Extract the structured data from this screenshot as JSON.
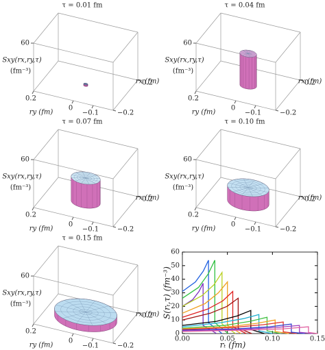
{
  "chart_data": [
    {
      "type": "surface3d",
      "title": "τ = 0.01 fm",
      "zlabel": "Sxy(rx,ry,τ)",
      "zunit": "(fm⁻³)",
      "xlabel": "rx (fm)",
      "ylabel": "ry (fm)",
      "xlim": [
        -0.2,
        0.2
      ],
      "ylim": [
        -0.2,
        0.2
      ],
      "zlim": [
        0,
        60
      ],
      "xticks": [
        {
          "value": -0.2,
          "label": "−0.2"
        },
        0.2
      ],
      "yticks": [
        {
          "value": -0.1,
          "label": "−0.1"
        },
        0,
        0.2
      ],
      "zticks": [
        60
      ],
      "radius": 0.01,
      "height": 2,
      "color": "#c060a8",
      "top_color": "#4a2a6a"
    },
    {
      "type": "surface3d",
      "title": "τ = 0.04 fm",
      "zlabel": "Sxy(rx,ry,τ)",
      "zunit": "(fm⁻³)",
      "xlabel": "rx (fm)",
      "ylabel": "ry (fm)",
      "xlim": [
        -0.2,
        0.2
      ],
      "ylim": [
        -0.2,
        0.2
      ],
      "zlim": [
        0,
        60
      ],
      "xticks": [
        {
          "value": -0.2,
          "label": "−0.2"
        },
        0.2
      ],
      "yticks": [
        {
          "value": -0.1,
          "label": "−0.1"
        },
        0,
        0.2
      ],
      "zticks": [
        60
      ],
      "radius": 0.04,
      "height": 40,
      "color": "#d070b8",
      "top_color": "#eaa8dc"
    },
    {
      "type": "surface3d",
      "title": "τ = 0.07 fm",
      "zlabel": "Sxy(rx,ry,τ)",
      "zunit": "(fm⁻³)",
      "xlabel": "rx (fm)",
      "ylabel": "ry (fm)",
      "xlim": [
        -0.2,
        0.2
      ],
      "ylim": [
        -0.2,
        0.2
      ],
      "zlim": [
        0,
        60
      ],
      "xticks": [
        {
          "value": -0.2,
          "label": "−0.2"
        },
        0.2
      ],
      "yticks": [
        {
          "value": -0.1,
          "label": "−0.1"
        },
        0,
        0.2
      ],
      "zticks": [
        60
      ],
      "radius": 0.07,
      "height": 30,
      "color": "#d070b8",
      "top_color": "#cfe6f4"
    },
    {
      "type": "surface3d",
      "title": "τ = 0.10 fm",
      "zlabel": "Sxy(rx,ry,τ)",
      "zunit": "(fm⁻³)",
      "xlabel": "rx (fm)",
      "ylabel": "ry (fm)",
      "xlim": [
        -0.2,
        0.2
      ],
      "ylim": [
        -0.2,
        0.2
      ],
      "zlim": [
        0,
        60
      ],
      "xticks": [
        {
          "value": -0.2,
          "label": "−0.2"
        },
        0.2
      ],
      "yticks": [
        {
          "value": -0.1,
          "label": "−0.1"
        },
        0,
        0.2
      ],
      "zticks": [
        60
      ],
      "radius": 0.1,
      "height": 18,
      "color": "#d070b8",
      "top_color": "#c4e0f2"
    },
    {
      "type": "surface3d",
      "title": "τ = 0.15 fm",
      "zlabel": "Sxy(rx,ry,τ)",
      "zunit": "(fm⁻³)",
      "xlabel": "rx (fm)",
      "ylabel": "ry (fm)",
      "xlim": [
        -0.2,
        0.2
      ],
      "ylim": [
        -0.2,
        0.2
      ],
      "zlim": [
        0,
        60
      ],
      "xticks": [
        {
          "value": -0.2,
          "label": "−0.2"
        },
        0.2
      ],
      "yticks": [
        {
          "value": -0.1,
          "label": "−0.1"
        },
        0,
        0.2
      ],
      "zticks": [
        60
      ],
      "radius": 0.15,
      "height": 8,
      "color": "#d070b8",
      "top_color": "#bcdcf0"
    },
    {
      "type": "line",
      "xlabel": "rₜ (fm)",
      "ylabel": "S(rₜ,τ) (fm⁻³)",
      "xlim": [
        0,
        0.15
      ],
      "ylim": [
        0,
        60
      ],
      "xticks": [
        {
          "value": 0,
          "label": "0.00"
        },
        0.05,
        {
          "value": 0.1,
          "label": "0.10"
        },
        0.15
      ],
      "yticks": [
        0,
        10,
        20,
        30,
        40,
        50,
        60
      ],
      "series": [
        {
          "color": "#7b2fbe",
          "x": [
            0,
            0.0115,
            0.0184,
            0.023,
            0.023,
            0.038
          ],
          "values": [
            20,
            25,
            31,
            37,
            6,
            0
          ]
        },
        {
          "color": "#2060e0",
          "x": [
            0,
            0.0145,
            0.0232,
            0.029,
            0.029,
            0.044
          ],
          "values": [
            31,
            38,
            46,
            54,
            8,
            0
          ]
        },
        {
          "color": "#30c040",
          "x": [
            0,
            0.018,
            0.0288,
            0.036,
            0.036,
            0.051
          ],
          "values": [
            26,
            34,
            44,
            54,
            8,
            0
          ]
        },
        {
          "color": "#b8d020",
          "x": [
            0,
            0.022,
            0.0352,
            0.044,
            0.044,
            0.059
          ],
          "values": [
            20,
            28,
            36,
            45,
            7,
            0
          ]
        },
        {
          "color": "#f0a020",
          "x": [
            0,
            0.025,
            0.04,
            0.05,
            0.05,
            0.065
          ],
          "values": [
            15,
            22,
            30,
            38,
            6,
            0
          ]
        },
        {
          "color": "#e02020",
          "x": [
            0,
            0.028,
            0.0448,
            0.056,
            0.056,
            0.071
          ],
          "values": [
            12,
            18,
            24,
            31,
            5,
            0
          ]
        },
        {
          "color": "#a01010",
          "x": [
            0,
            0.031,
            0.0496,
            0.062,
            0.062,
            0.077
          ],
          "values": [
            10,
            15,
            20,
            26,
            4,
            0
          ]
        },
        {
          "color": "#000000",
          "x": [
            0,
            0.038,
            0.0608,
            0.076,
            0.076,
            0.091
          ],
          "values": [
            6,
            9,
            13,
            17,
            3,
            0
          ]
        },
        {
          "color": "#20b0d0",
          "x": [
            0,
            0.0425,
            0.068,
            0.085,
            0.085,
            0.1
          ],
          "values": [
            5,
            8,
            11,
            14,
            2,
            0
          ]
        },
        {
          "color": "#40c040",
          "x": [
            0,
            0.047,
            0.0752,
            0.094,
            0.094,
            0.109
          ],
          "values": [
            4,
            6,
            9,
            12,
            2,
            0
          ]
        },
        {
          "color": "#f0a020",
          "x": [
            0,
            0.0515,
            0.0824,
            0.103,
            0.103,
            0.118
          ],
          "values": [
            3.5,
            5,
            7.5,
            10,
            1.5,
            0
          ]
        },
        {
          "color": "#e03030",
          "x": [
            0,
            0.056,
            0.0896,
            0.112,
            0.112,
            0.127
          ],
          "values": [
            3,
            4.5,
            6.5,
            8.5,
            1.3,
            0
          ]
        },
        {
          "color": "#3040d0",
          "x": [
            0,
            0.0605,
            0.0968,
            0.121,
            0.121,
            0.136
          ],
          "values": [
            2.5,
            3.5,
            5,
            7,
            1,
            0
          ]
        },
        {
          "color": "#a040c0",
          "x": [
            0,
            0.065,
            0.104,
            0.13,
            0.13,
            0.145
          ],
          "values": [
            2,
            3,
            4.5,
            6,
            0.9,
            0
          ]
        },
        {
          "color": "#e060a0",
          "x": [
            0,
            0.07,
            0.112,
            0.14,
            0.14,
            0.15
          ],
          "values": [
            1.5,
            2.5,
            3.5,
            5,
            0.8,
            0
          ]
        }
      ]
    }
  ]
}
